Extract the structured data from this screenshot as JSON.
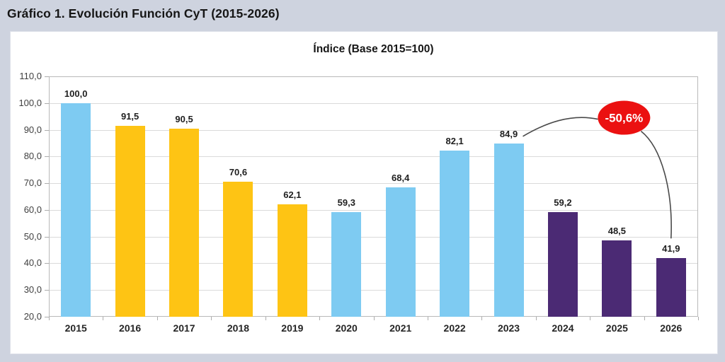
{
  "header": {
    "title": "Gráfico 1. Evolución Función CyT (2015-2026)"
  },
  "chart_data": {
    "type": "bar",
    "title": "Índice (Base 2015=100)",
    "categories": [
      "2015",
      "2016",
      "2017",
      "2018",
      "2019",
      "2020",
      "2021",
      "2022",
      "2023",
      "2024",
      "2025",
      "2026"
    ],
    "values": [
      100.0,
      91.5,
      90.5,
      70.6,
      62.1,
      59.3,
      68.4,
      82.1,
      84.9,
      59.2,
      48.5,
      41.9
    ],
    "value_labels": [
      "100,0",
      "91,5",
      "90,5",
      "70,6",
      "62,1",
      "59,3",
      "68,4",
      "82,1",
      "84,9",
      "59,2",
      "48,5",
      "41,9"
    ],
    "bar_colors": [
      "#7ECBF2",
      "#FEC414",
      "#FEC414",
      "#FEC414",
      "#FEC414",
      "#7ECBF2",
      "#7ECBF2",
      "#7ECBF2",
      "#7ECBF2",
      "#4B2A74",
      "#4B2A74",
      "#4B2A74"
    ],
    "ylim": [
      20,
      110
    ],
    "yticks": [
      110,
      100,
      90,
      80,
      70,
      60,
      50,
      40,
      30,
      20
    ],
    "ytick_labels": [
      "110,0",
      "100,0",
      "90,0",
      "80,0",
      "70,0",
      "60,0",
      "50,0",
      "40,0",
      "30,0",
      "20,0"
    ],
    "grid": true,
    "legend_position": "none",
    "annotation": {
      "text": "-50,6%",
      "shape": "ellipse",
      "fill": "#EB1111",
      "text_color": "#FFFFFF",
      "connects": [
        "2023",
        "2026"
      ]
    }
  },
  "colors": {
    "page_bg": "#CED3DF",
    "panel_bg": "#FFFFFF",
    "plot_border": "#B9B9B9",
    "grid": "#DADADA",
    "axis_tick": "#ACACAC",
    "curve": "#4A4A4A",
    "blue": "#7ECBF2",
    "yellow": "#FEC414",
    "purple": "#4B2A74",
    "red": "#EB1111"
  }
}
